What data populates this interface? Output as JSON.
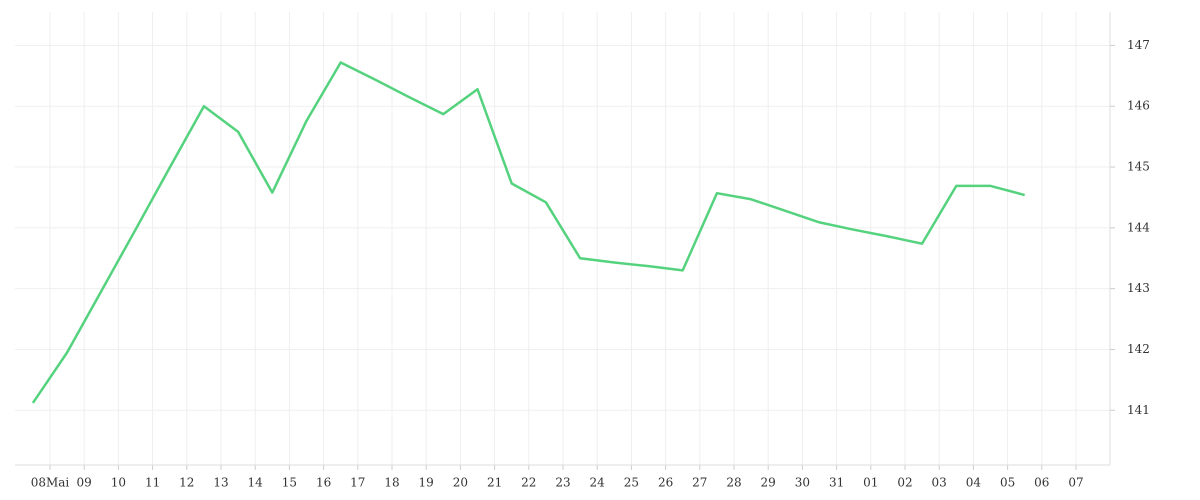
{
  "chart_data": {
    "type": "line",
    "categories": [
      "08Mai",
      "09",
      "10",
      "11",
      "12",
      "13",
      "14",
      "15",
      "16",
      "17",
      "18",
      "19",
      "20",
      "21",
      "22",
      "23",
      "24",
      "25",
      "26",
      "27",
      "28",
      "29",
      "30",
      "31",
      "01",
      "02",
      "03",
      "04",
      "05",
      "06",
      "07"
    ],
    "values": [
      141.12,
      141.95,
      142.96,
      143.97,
      144.99,
      146.0,
      145.58,
      144.58,
      145.76,
      146.72,
      146.44,
      146.15,
      145.87,
      146.28,
      144.73,
      144.42,
      143.5,
      143.43,
      143.37,
      143.3,
      144.57,
      144.47,
      144.28,
      144.09,
      143.97,
      143.86,
      143.74,
      144.69,
      144.69,
      144.54,
      null
    ],
    "color": "#55d27e",
    "ylim": [
      140.1,
      147.55
    ],
    "yticks": [
      141,
      142,
      143,
      144,
      145,
      146,
      147
    ],
    "grid": true
  }
}
